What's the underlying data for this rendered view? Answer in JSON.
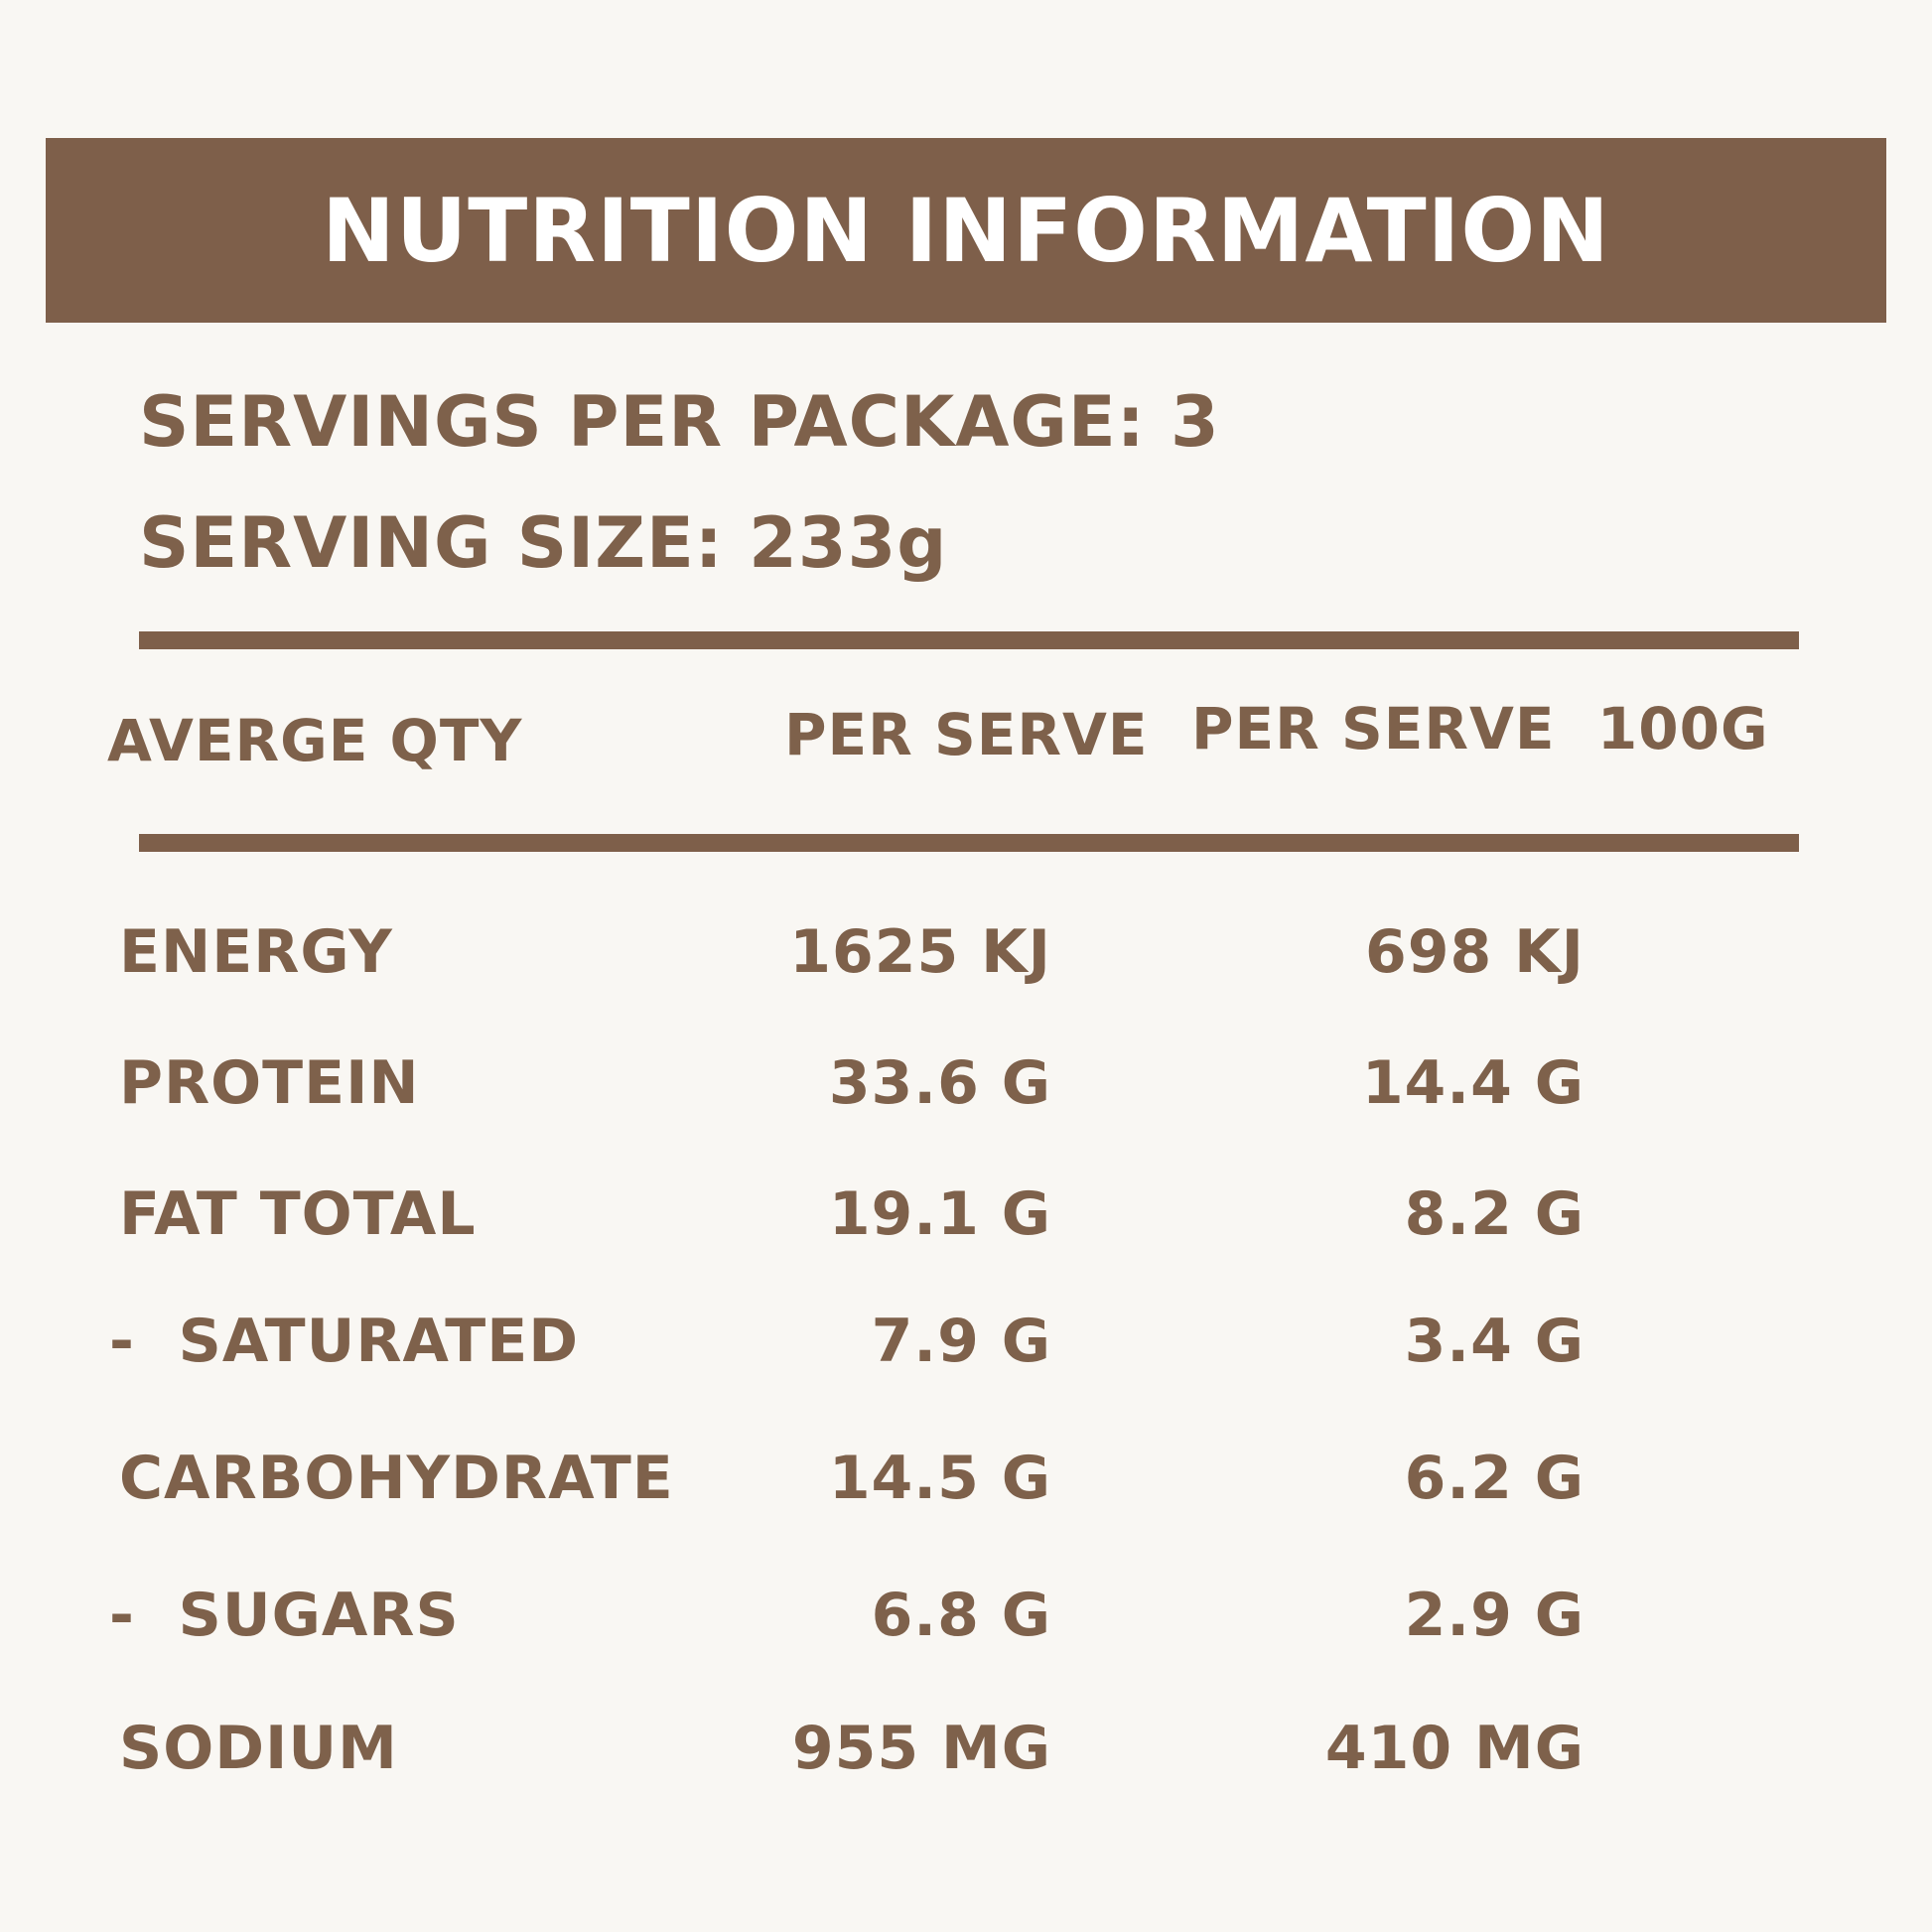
{
  "title": "NUTRITION INFORMATION",
  "servings_per_package": "SERVINGS PER PACKAGE: 3",
  "serving_size": "SERVING SIZE: 233g",
  "columns": {
    "label": "AVERGE QTY",
    "per_serve": "PER SERVE",
    "per_100g": "PER SERVE  100G"
  },
  "rows": [
    {
      "label": "ENERGY",
      "per_serve": "1625 KJ",
      "per_100g": "698 KJ"
    },
    {
      "label": "PROTEIN",
      "per_serve": "33.6 G",
      "per_100g": "14.4 G"
    },
    {
      "label": "FAT TOTAL",
      "per_serve": "19.1 G",
      "per_100g": "8.2 G"
    },
    {
      "label": "-  SATURATED",
      "per_serve": "7.9 G",
      "per_100g": "3.4 G"
    },
    {
      "label": "CARBOHYDRATE",
      "per_serve": "14.5 G",
      "per_100g": "6.2 G"
    },
    {
      "label": "-  SUGARS",
      "per_serve": "6.8 G",
      "per_100g": "2.9 G"
    },
    {
      "label": "SODIUM",
      "per_serve": "955 MG",
      "per_100g": "410 MG"
    }
  ],
  "colors": {
    "accent": "#7e5f4a",
    "text": "#7e614b",
    "background": "#f9f7f3",
    "banner_text": "#ffffff"
  }
}
